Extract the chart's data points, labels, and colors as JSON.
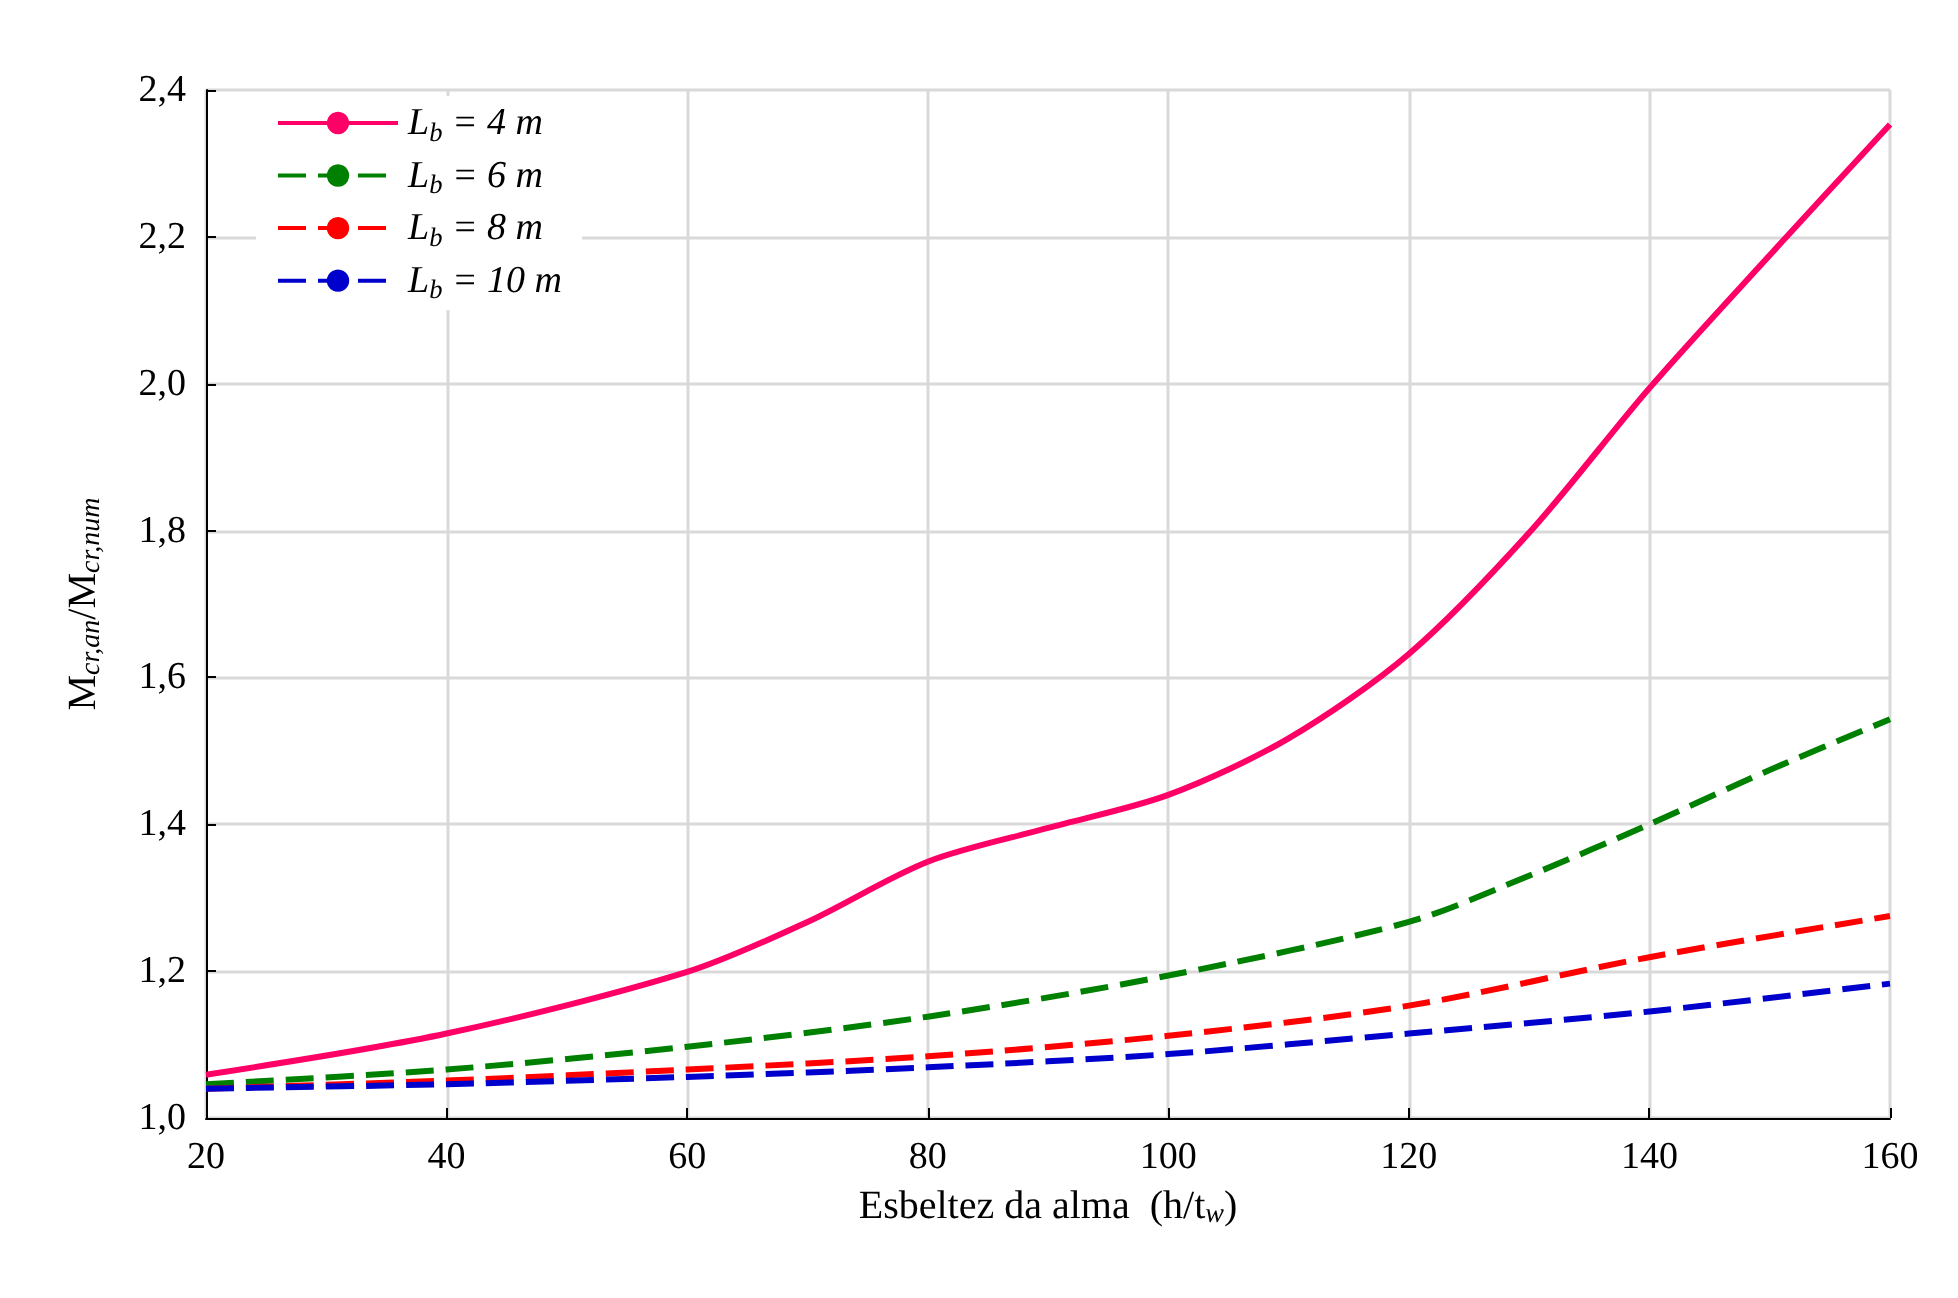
{
  "chart_data": {
    "type": "line",
    "xlabel": "Esbeltez da alma  (h/t$_{w}$)",
    "ylabel": "M$_{cr,an}$/M$_{cr,num}$",
    "xlim": [
      20,
      160
    ],
    "xticks": [
      20,
      40,
      60,
      80,
      100,
      120,
      140,
      160
    ],
    "ylim": [
      1,
      2.4
    ],
    "yticks": [
      {
        "value": 1,
        "label": "1,0"
      },
      {
        "value": 1.2,
        "label": "1,2"
      },
      {
        "value": 1.4,
        "label": "1,4"
      },
      {
        "value": 1.6,
        "label": "1,6"
      },
      {
        "value": 1.8,
        "label": "1,8"
      },
      {
        "value": 2,
        "label": "2,0"
      },
      {
        "value": 2.2,
        "label": "2,2"
      },
      {
        "value": 2.4,
        "label": "2,4"
      }
    ],
    "grid": true,
    "legend": "top left",
    "marker": "none",
    "series": [
      {
        "name": "L$_{b}$ = 4 m",
        "color": "#ff0066",
        "line_style": "solid",
        "x": [
          20,
          40,
          60,
          70,
          80,
          90,
          100,
          110,
          120,
          130,
          140,
          150,
          160
        ],
        "values": [
          1.059,
          1.115,
          1.199,
          1.267,
          1.349,
          1.395,
          1.44,
          1.517,
          1.632,
          1.797,
          1.994,
          2.175,
          2.353
        ]
      },
      {
        "name": "L$_{b}$ = 6 m",
        "color": "#008000",
        "line_style": "dashed",
        "x": [
          20,
          40,
          60,
          80,
          100,
          120,
          130,
          140,
          150,
          160
        ],
        "values": [
          1.046,
          1.066,
          1.097,
          1.138,
          1.194,
          1.267,
          1.33,
          1.4,
          1.474,
          1.543
        ]
      },
      {
        "name": "L$_{b}$ = 8 m",
        "color": "#ff0000",
        "line_style": "dashed",
        "x": [
          20,
          40,
          60,
          80,
          100,
          120,
          140,
          160
        ],
        "values": [
          1.04,
          1.051,
          1.066,
          1.084,
          1.112,
          1.153,
          1.219,
          1.275
        ]
      },
      {
        "name": "L$_{b}$ = 10 m",
        "color": "#0000cc",
        "line_style": "dashed",
        "x": [
          20,
          40,
          60,
          80,
          100,
          120,
          140,
          160
        ],
        "values": [
          1.04,
          1.046,
          1.056,
          1.069,
          1.087,
          1.115,
          1.145,
          1.183
        ]
      }
    ]
  }
}
